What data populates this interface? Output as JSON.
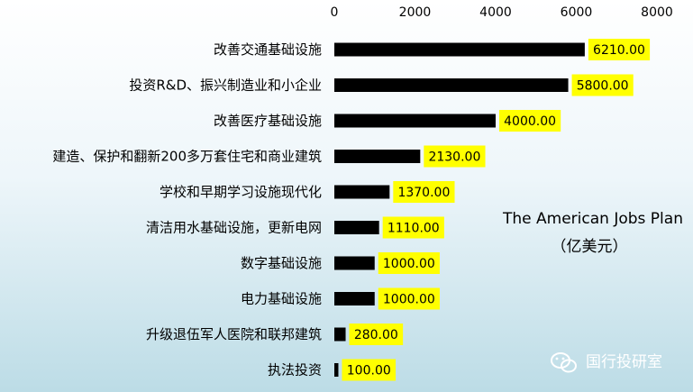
{
  "chart_data": {
    "type": "bar",
    "orientation": "horizontal",
    "xlim": [
      0,
      8000
    ],
    "x_ticks": [
      0,
      2000,
      4000,
      6000,
      8000
    ],
    "x_tick_labels": [
      "0",
      "2000",
      "4000",
      "6000",
      "8000"
    ],
    "axis_position": "top",
    "grid": false,
    "categories": [
      "改善交通基础设施",
      "投资R&D、振兴制造业和小企业",
      "改善医疗基础设施",
      "建造、保护和翻新200多万套住宅和商业建筑",
      "学校和早期学习设施现代化",
      "清洁用水基础设施，更新电网",
      "数字基础设施",
      "电力基础设施",
      "升级退伍军人医院和联邦建筑",
      "执法投资"
    ],
    "values": [
      6210,
      5800,
      4000,
      2130,
      1370,
      1110,
      1000,
      1000,
      280,
      100
    ],
    "value_labels": [
      "6210.00",
      "5800.00",
      "4000.00",
      "2130.00",
      "1370.00",
      "1110.00",
      "1000.00",
      "1000.00",
      "280.00",
      "100.00"
    ],
    "bar_color": "#000000",
    "label_bg_color": "#ffff00",
    "annotation": {
      "line1": "The American Jobs Plan",
      "line2": "（亿美元）"
    }
  },
  "watermark": {
    "text": "国行投研室",
    "icon": "wechat-icon"
  }
}
